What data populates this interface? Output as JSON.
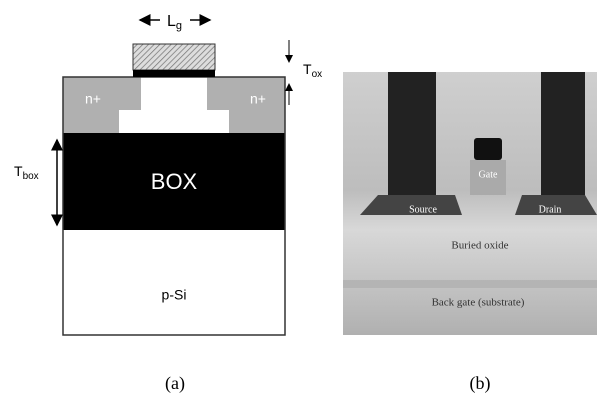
{
  "panel_a": {
    "gate_length": {
      "main": "L",
      "sub": "g"
    },
    "oxide_thickness": {
      "main": "T",
      "sub": "ox"
    },
    "box_thickness": {
      "main": "T",
      "sub": "box"
    },
    "source_label": "n+",
    "drain_label": "n+",
    "box_label": "BOX",
    "substrate_label": "p-Si",
    "caption": "(a)"
  },
  "panel_b": {
    "gate_label": "Gate",
    "source_label": "Source",
    "drain_label": "Drain",
    "buried_oxide_label": "Buried oxide",
    "back_gate_label": "Back gate (substrate)",
    "caption": "(b)"
  }
}
